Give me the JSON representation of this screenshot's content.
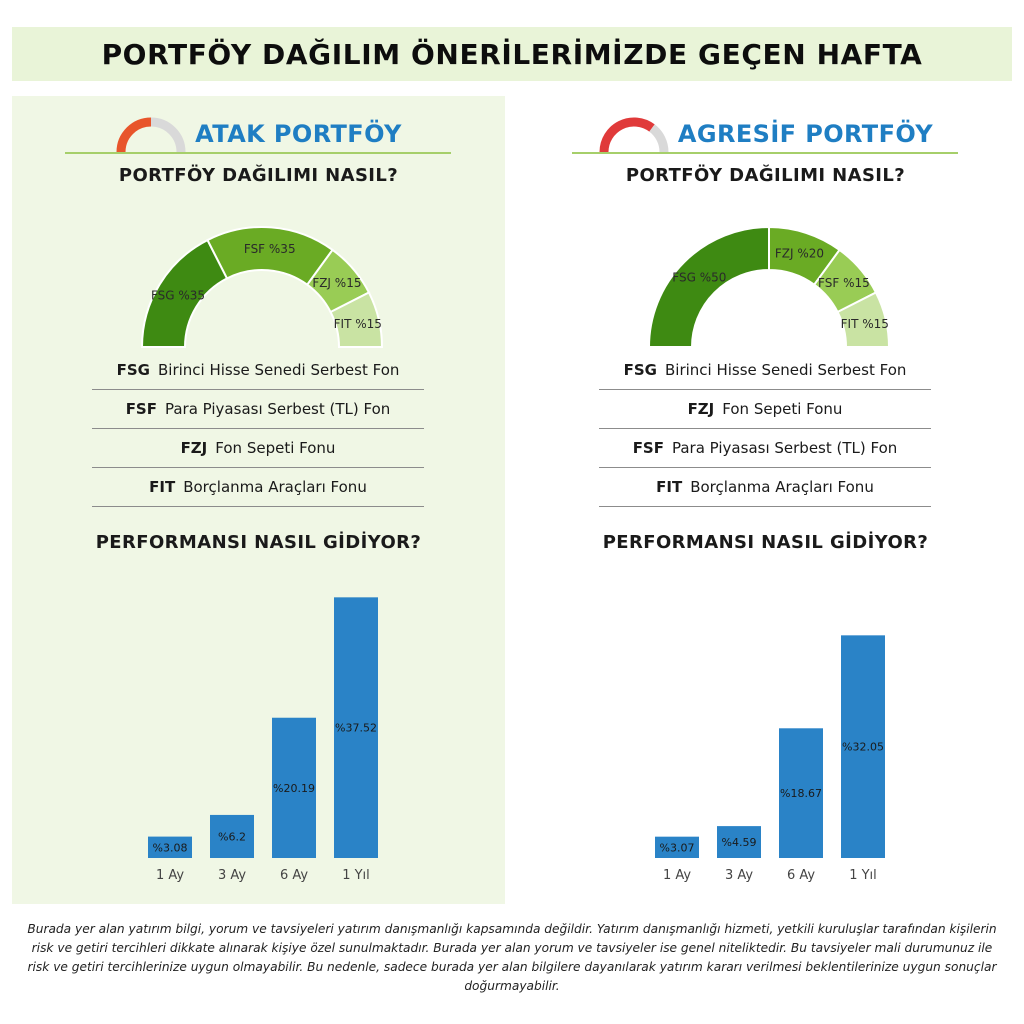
{
  "header": {
    "title": "PORTFÖY DAĞILIM ÖNERİLERİMİZDE GEÇEN HAFTA"
  },
  "colors": {
    "atak_icon": "#e8552b",
    "agresif_icon": "#e03a3a",
    "title_blue": "#1f7ec3",
    "bar_blue": "#2a83c7",
    "seg_dark": "#3e8a12",
    "seg_mid": "#6aab24",
    "seg_light": "#99cc55",
    "seg_pale": "#c9e3a3"
  },
  "panels": [
    {
      "title": "ATAK PORTFÖY",
      "icon": "gauge-icon",
      "distribution_heading": "PORTFÖY DAĞILIMI NASIL?",
      "performance_heading": "PERFORMANSI NASIL GİDİYOR?",
      "legend": [
        {
          "code": "FSG",
          "name": "Birinci Hisse Senedi Serbest Fon"
        },
        {
          "code": "FSF",
          "name": "Para Piyasası Serbest (TL) Fon"
        },
        {
          "code": "FZJ",
          "name": "Fon Sepeti Fonu"
        },
        {
          "code": "FIT",
          "name": "Borçlanma Araçları Fonu"
        }
      ]
    },
    {
      "title": "AGRESİF PORTFÖY",
      "icon": "gauge-icon",
      "distribution_heading": "PORTFÖY DAĞILIMI NASIL?",
      "performance_heading": "PERFORMANSI NASIL GİDİYOR?",
      "legend": [
        {
          "code": "FSG",
          "name": "Birinci Hisse Senedi Serbest Fon"
        },
        {
          "code": "FZJ",
          "name": "Fon Sepeti Fonu"
        },
        {
          "code": "FSF",
          "name": "Para Piyasası Serbest (TL) Fon"
        },
        {
          "code": "FIT",
          "name": "Borçlanma Araçları Fonu"
        }
      ]
    }
  ],
  "chart_data": [
    {
      "type": "pie",
      "title": "",
      "labels": [
        "FSG %35",
        "FSF %35",
        "FZJ %15",
        "FIT %15"
      ],
      "categories": [
        "FSG",
        "FSF",
        "FZJ",
        "FIT"
      ],
      "values": [
        35,
        35,
        15,
        15
      ],
      "colors": [
        "#3e8a12",
        "#6aab24",
        "#99cc55",
        "#c9e3a3"
      ]
    },
    {
      "type": "bar",
      "title": "",
      "categories": [
        "1 Ay",
        "3 Ay",
        "6 Ay",
        "1 Yıl"
      ],
      "values": [
        3.08,
        6.2,
        20.19,
        37.52
      ],
      "value_labels": [
        "%3.08",
        "%6.2",
        "%20.19",
        "%37.52"
      ],
      "ylim": [
        0,
        38
      ]
    },
    {
      "type": "pie",
      "title": "",
      "labels": [
        "FSG %50",
        "FZJ %20",
        "FSF %15",
        "FIT %15"
      ],
      "categories": [
        "FSG",
        "FZJ",
        "FSF",
        "FIT"
      ],
      "values": [
        50,
        20,
        15,
        15
      ],
      "colors": [
        "#3e8a12",
        "#6aab24",
        "#99cc55",
        "#c9e3a3"
      ]
    },
    {
      "type": "bar",
      "title": "",
      "categories": [
        "1 Ay",
        "3 Ay",
        "6 Ay",
        "1 Yıl"
      ],
      "values": [
        3.07,
        4.59,
        18.67,
        32.05
      ],
      "value_labels": [
        "%3.07",
        "%4.59",
        "%18.67",
        "%32.05"
      ],
      "ylim": [
        0,
        38
      ]
    }
  ],
  "disclaimer": "Burada yer alan yatırım bilgi, yorum ve tavsiyeleri yatırım danışmanlığı kapsamında değildir. Yatırım danışmanlığı hizmeti, yetkili kuruluşlar tarafından kişilerin risk ve getiri tercihleri dikkate alınarak kişiye özel sunulmaktadır. Burada yer alan yorum ve tavsiyeler ise genel niteliktedir. Bu tavsiyeler mali durumunuz ile risk ve getiri tercihlerinize uygun olmayabilir. Bu nedenle, sadece burada yer alan bilgilere dayanılarak yatırım kararı verilmesi beklentilerinize uygun sonuçlar doğurmayabilir."
}
